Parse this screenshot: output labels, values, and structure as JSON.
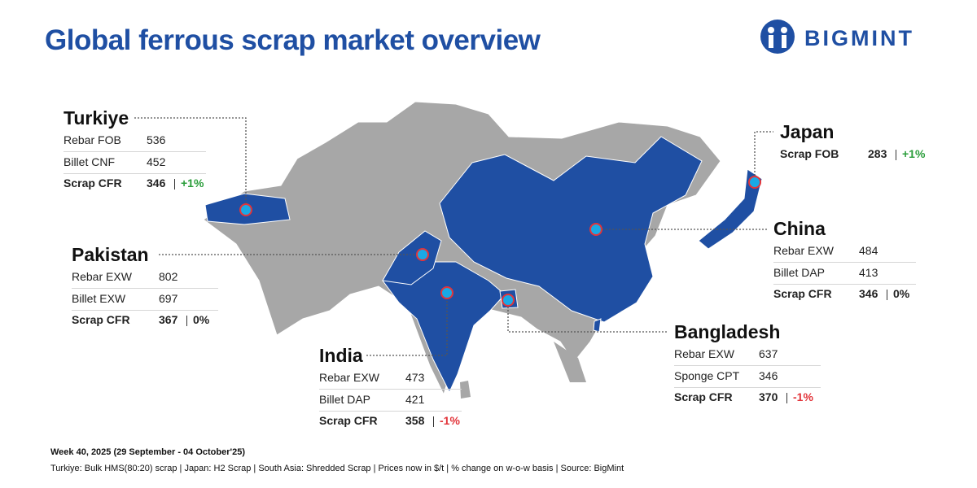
{
  "header": {
    "title": "Global ferrous scrap market overview",
    "logo": "BIGMINT"
  },
  "markets": [
    {
      "country": "Turkiye",
      "rows": [
        {
          "item": "Rebar FOB",
          "price": 536
        },
        {
          "item": "Billet CNF",
          "price": 452
        },
        {
          "item": "Scrap CFR",
          "price": 346,
          "change": "+1%"
        }
      ]
    },
    {
      "country": "Pakistan",
      "rows": [
        {
          "item": "Rebar EXW",
          "price": 802
        },
        {
          "item": "Billet EXW",
          "price": 697
        },
        {
          "item": "Scrap CFR",
          "price": 367,
          "change": "0%"
        }
      ]
    },
    {
      "country": "India",
      "rows": [
        {
          "item": "Rebar EXW",
          "price": 473
        },
        {
          "item": "Billet DAP",
          "price": 421
        },
        {
          "item": "Scrap CFR",
          "price": 358,
          "change": "-1%"
        }
      ]
    },
    {
      "country": "Japan",
      "rows": [
        {
          "item": "Scrap FOB",
          "price": 283,
          "change": "+1%"
        }
      ]
    },
    {
      "country": "China",
      "rows": [
        {
          "item": "Rebar EXW",
          "price": 484
        },
        {
          "item": "Billet DAP",
          "price": 413
        },
        {
          "item": "Scrap CFR",
          "price": 346,
          "change": "0%"
        }
      ]
    },
    {
      "country": "Bangladesh",
      "rows": [
        {
          "item": "Rebar EXW",
          "price": 637
        },
        {
          "item": "Sponge CPT",
          "price": 346
        },
        {
          "item": "Scrap CFR",
          "price": 370,
          "change": "-1%"
        }
      ]
    }
  ],
  "footer": {
    "period": "Week 40, 2025 (29 September - 04 October'25)",
    "note": "Turkiye: Bulk HMS(80:20) scrap | Japan: H2 Scrap | South Asia: Shredded Scrap | Prices now in $/t | % change on w-o-w basis | Source: BigMint"
  }
}
